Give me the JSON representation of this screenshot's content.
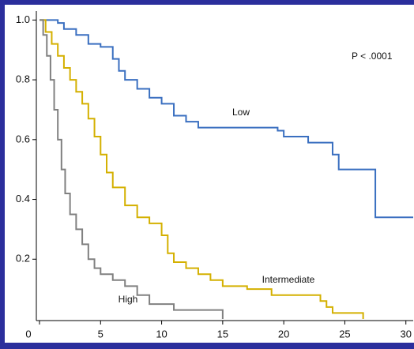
{
  "chart_data": {
    "type": "step",
    "annotation": "P < .0001",
    "xlim": [
      0,
      30.6
    ],
    "xticks": [
      0,
      5,
      10,
      15,
      20,
      25,
      30
    ],
    "ylim": [
      0,
      1.03
    ],
    "yticks": [
      {
        "value": 0.2,
        "label": "0.2"
      },
      {
        "value": 0.4,
        "label": "0.4"
      },
      {
        "value": 0.6,
        "label": "0.6"
      },
      {
        "value": 0.8,
        "label": "0.8"
      },
      {
        "value": 1,
        "label": "1.0"
      }
    ],
    "series": [
      {
        "name": "Low",
        "color": "#3a6fc0",
        "x": [
          0,
          1.5,
          2,
          3,
          4,
          5,
          6,
          6.5,
          7,
          8,
          9,
          10,
          11,
          12,
          13,
          19.5,
          20,
          22,
          24,
          24.5,
          27.5,
          30.6
        ],
        "values": [
          1,
          0.99,
          0.97,
          0.95,
          0.92,
          0.91,
          0.87,
          0.83,
          0.8,
          0.77,
          0.74,
          0.72,
          0.68,
          0.66,
          0.64,
          0.63,
          0.61,
          0.59,
          0.55,
          0.5,
          0.34,
          0.34
        ]
      },
      {
        "name": "Intermediate",
        "color": "#d4b000",
        "x": [
          0,
          0.5,
          1,
          1.5,
          2,
          2.5,
          3,
          3.5,
          4,
          4.5,
          5,
          5.5,
          6,
          7,
          8,
          9,
          10,
          10.5,
          11,
          12,
          13,
          14,
          15,
          17,
          19,
          23,
          23.5,
          24,
          26.5
        ],
        "values": [
          1,
          0.96,
          0.92,
          0.88,
          0.84,
          0.8,
          0.76,
          0.72,
          0.67,
          0.61,
          0.55,
          0.49,
          0.44,
          0.38,
          0.34,
          0.32,
          0.28,
          0.22,
          0.19,
          0.17,
          0.15,
          0.13,
          0.11,
          0.1,
          0.08,
          0.06,
          0.04,
          0.02,
          0
        ]
      },
      {
        "name": "High",
        "color": "#808080",
        "x": [
          0,
          0.3,
          0.6,
          0.9,
          1.2,
          1.5,
          1.8,
          2.1,
          2.5,
          3,
          3.5,
          4,
          4.5,
          5,
          6,
          7,
          8,
          9,
          11,
          15
        ],
        "values": [
          1,
          0.95,
          0.88,
          0.8,
          0.7,
          0.6,
          0.5,
          0.42,
          0.35,
          0.3,
          0.25,
          0.2,
          0.17,
          0.15,
          0.13,
          0.11,
          0.08,
          0.05,
          0.03,
          0
        ]
      }
    ]
  }
}
